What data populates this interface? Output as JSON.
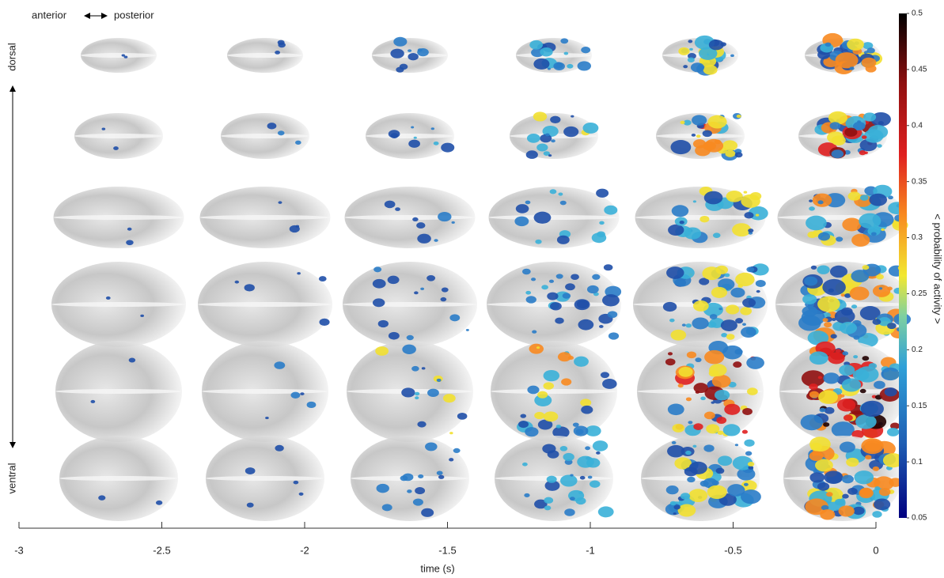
{
  "chart_data": {
    "type": "heatmap",
    "annotations": [
      "anterior",
      "posterior",
      "dorsal",
      "ventral"
    ],
    "xlabel": "time (s)",
    "xlim": [
      -3,
      0
    ],
    "xticks": [
      -3,
      -2.5,
      -2,
      -1.5,
      -1,
      -0.5,
      0
    ],
    "colorbar": {
      "label": "< probability of activity >",
      "lim": [
        0.05,
        0.5
      ],
      "ticks": [
        0.05,
        0.1,
        0.15,
        0.2,
        0.25,
        0.3,
        0.35,
        0.4,
        0.45,
        0.5
      ],
      "colormap": "jet"
    }
  }
}
